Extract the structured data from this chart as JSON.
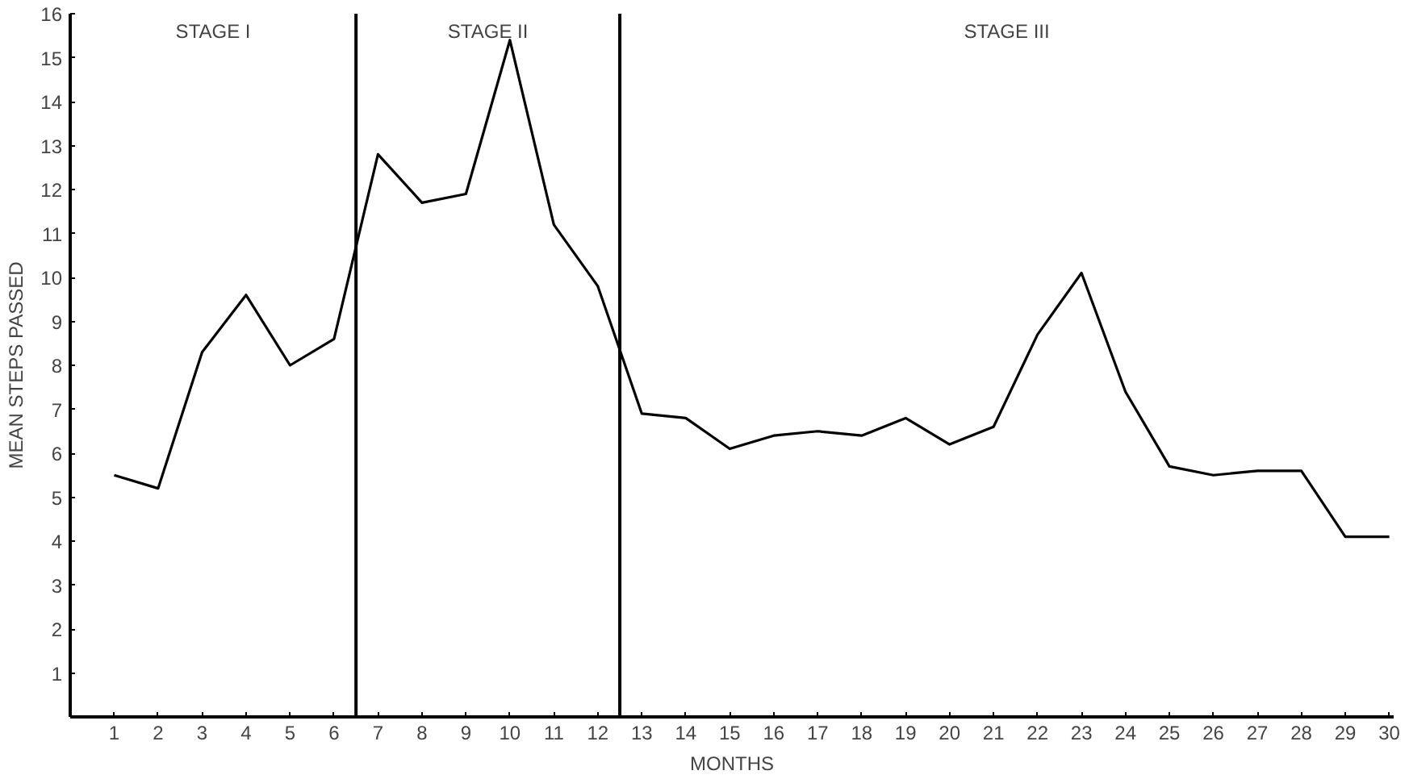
{
  "chart_data": {
    "type": "line",
    "xlabel": "MONTHS",
    "ylabel": "MEAN STEPS PASSED",
    "x": [
      1,
      2,
      3,
      4,
      5,
      6,
      7,
      8,
      9,
      10,
      11,
      12,
      13,
      14,
      15,
      16,
      17,
      18,
      19,
      20,
      21,
      22,
      23,
      24,
      25,
      26,
      27,
      28,
      29,
      30
    ],
    "series": [
      {
        "color": "#000000",
        "values": [
          5.5,
          5.2,
          8.3,
          9.6,
          8.0,
          8.6,
          12.8,
          11.7,
          11.9,
          15.4,
          11.2,
          9.8,
          6.9,
          6.8,
          6.1,
          6.4,
          6.5,
          6.4,
          6.8,
          6.2,
          6.6,
          8.7,
          10.1,
          7.4,
          5.7,
          5.5,
          5.6,
          5.6,
          4.1,
          4.1
        ]
      }
    ],
    "xlim": [
      0,
      30.1
    ],
    "ylim": [
      0,
      16
    ],
    "xticks": [
      1,
      2,
      3,
      4,
      5,
      6,
      7,
      8,
      9,
      10,
      11,
      12,
      13,
      14,
      15,
      16,
      17,
      18,
      19,
      20,
      21,
      22,
      23,
      24,
      25,
      26,
      27,
      28,
      29,
      30
    ],
    "yticks": [
      1,
      2,
      3,
      4,
      5,
      6,
      7,
      8,
      9,
      10,
      11,
      12,
      13,
      14,
      15,
      16
    ],
    "ref_lines": [
      {
        "axis": "x",
        "value": 6.5,
        "color": "#000000"
      },
      {
        "axis": "x",
        "value": 12.5,
        "color": "#000000"
      }
    ],
    "annotations": [
      "STAGE I",
      "STAGE II",
      "STAGE III"
    ],
    "grid": false,
    "marker": "none",
    "line_style": "solid"
  }
}
